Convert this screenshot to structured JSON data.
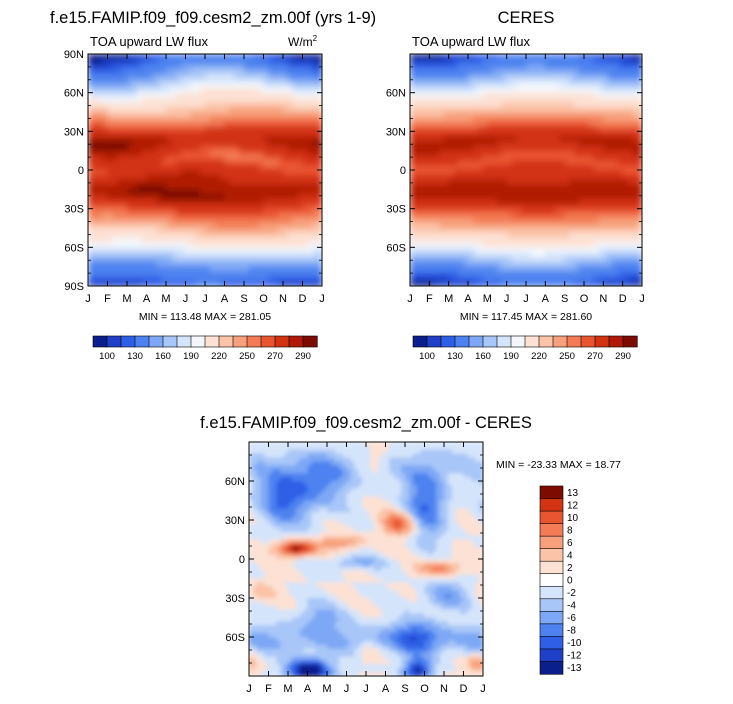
{
  "palette": {
    "lw_flux": [
      "#0a1e8c",
      "#1f3fc7",
      "#2e5fe6",
      "#4d82f0",
      "#7ea8f5",
      "#a8c6f8",
      "#d4e4fb",
      "#f4f8fd",
      "#fde1d4",
      "#fbc3a8",
      "#f7a07c",
      "#f37b55",
      "#ea5531",
      "#d23312",
      "#b11a06",
      "#7d0b02"
    ],
    "diff": [
      "#0a1e8c",
      "#1f3fc7",
      "#2e5fe6",
      "#4d82f0",
      "#7ea8f5",
      "#a8c6f8",
      "#d4e4fb",
      "#ffffff",
      "#fde1d4",
      "#fbc3a8",
      "#f7a07c",
      "#f37b55",
      "#ea5531",
      "#d23312",
      "#7d0b02"
    ]
  },
  "chart_data": [
    {
      "id": "model",
      "type": "heatmap",
      "title": "f.e15.FAMIP.f09_f09.cesm2_zm.00f (yrs 1-9)",
      "subtitle": "TOA upward LW flux",
      "units_base": "W/m",
      "units_exp": "2",
      "stats": "MIN = 113.48 MAX = 281.05",
      "min": 113.48,
      "max": 281.05,
      "x_ticks": [
        "J",
        "F",
        "M",
        "A",
        "M",
        "J",
        "J",
        "A",
        "S",
        "O",
        "N",
        "D",
        "J"
      ],
      "y_ticks": [
        "90N",
        "60N",
        "30N",
        "0",
        "30S",
        "60S",
        "90S"
      ],
      "y_tick_values": [
        90,
        60,
        30,
        0,
        -30,
        -60,
        -90
      ],
      "ylim": [
        -90,
        90
      ],
      "colorbar_labels": [
        "100",
        "130",
        "160",
        "190",
        "220",
        "250",
        "270",
        "290"
      ],
      "colorbar_levels": [
        100,
        110,
        120,
        130,
        140,
        150,
        160,
        170,
        180,
        190,
        200,
        210,
        220,
        230,
        240,
        250,
        260,
        270,
        280,
        290
      ]
    },
    {
      "id": "ceres",
      "type": "heatmap",
      "title": "CERES",
      "subtitle": "TOA upward LW flux",
      "stats": "MIN = 117.45 MAX = 281.60",
      "min": 117.45,
      "max": 281.6,
      "x_ticks": [
        "J",
        "F",
        "M",
        "A",
        "M",
        "J",
        "J",
        "A",
        "S",
        "O",
        "N",
        "D",
        "J"
      ],
      "y_ticks": [
        "60N",
        "30N",
        "0",
        "30S",
        "60S"
      ],
      "y_tick_values": [
        60,
        30,
        0,
        -30,
        -60
      ],
      "ylim": [
        -90,
        90
      ],
      "colorbar_labels": [
        "100",
        "130",
        "160",
        "190",
        "220",
        "250",
        "270",
        "290"
      ]
    },
    {
      "id": "difference",
      "type": "heatmap",
      "title": "f.e15.FAMIP.f09_f09.cesm2_zm.00f - CERES",
      "stats": "MIN = -23.33 MAX =  18.77",
      "min": -23.33,
      "max": 18.77,
      "x_ticks": [
        "J",
        "F",
        "M",
        "A",
        "M",
        "J",
        "J",
        "A",
        "S",
        "O",
        "N",
        "D",
        "J"
      ],
      "y_ticks": [
        "60N",
        "30N",
        "0",
        "30S",
        "60S"
      ],
      "y_tick_values": [
        60,
        30,
        0,
        -30,
        -60
      ],
      "ylim": [
        -90,
        90
      ],
      "colorbar_labels": [
        "13",
        "12",
        "10",
        "8",
        "6",
        "4",
        "2",
        "0",
        "-2",
        "-4",
        "-6",
        "-8",
        "-10",
        "-12",
        "-13"
      ]
    }
  ]
}
